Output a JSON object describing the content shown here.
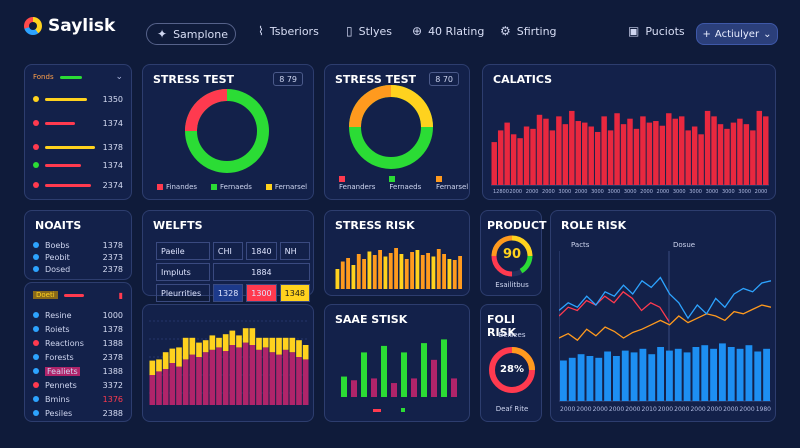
{
  "app": {
    "name": "Saylisk"
  },
  "nav": {
    "sample": "Samplone",
    "items": [
      "Tsberiors",
      "Stlyes",
      "40 Rlating",
      "Sfirting"
    ],
    "products": "Puciots",
    "action": "Actiulyer"
  },
  "colors": {
    "bg": "#0f1b3a",
    "card": "#13214a",
    "red": "#ff3a4f",
    "green": "#2bdc35",
    "yellow": "#ffd21e",
    "orange": "#ff9a1e",
    "blue": "#1d8ff2",
    "magenta": "#b0246a"
  },
  "list_card": {
    "title": "Fonds",
    "rows": [
      {
        "value": "1350"
      },
      {
        "value": "1374"
      },
      {
        "value": "1378"
      },
      {
        "value": "1374"
      },
      {
        "value": "2374"
      }
    ]
  },
  "stress1": {
    "title": "STRESS TEST",
    "badge": "8 79",
    "legend": [
      "Finandes",
      "Fernaeds",
      "Fernarsel"
    ],
    "donut": [
      {
        "color": "#2bdc35",
        "value": 75
      },
      {
        "color": "#ff3a4f",
        "value": 25
      }
    ]
  },
  "stress2": {
    "title": "STRESS TEST",
    "badge": "8 70",
    "legend": [
      "Fenanders",
      "Fernaeds",
      "Fernarsel"
    ],
    "donut": [
      {
        "color": "#ffd21e",
        "value": 30
      },
      {
        "color": "#2bdc35",
        "value": 45
      },
      {
        "color": "#ff9a1e",
        "value": 25
      }
    ]
  },
  "analytics": {
    "title": "CALATICS",
    "labels": [
      "12800",
      "2000",
      "2000",
      "2000",
      "3000",
      "2000",
      "3000",
      "3000",
      "3000",
      "2000",
      "2000",
      "3000",
      "3000",
      "3000",
      "3000",
      "3000",
      "2000"
    ],
    "values": [
      55,
      70,
      80,
      65,
      60,
      75,
      72,
      90,
      85,
      70,
      88,
      78,
      95,
      82,
      80,
      75,
      68,
      88,
      70,
      92,
      78,
      85,
      72,
      88,
      80,
      82,
      76,
      92,
      85,
      88,
      70,
      75,
      65,
      95,
      88,
      78,
      72,
      80,
      85,
      78,
      70,
      95,
      88
    ]
  },
  "noaits": {
    "title": "NOAITS",
    "rows": [
      {
        "label": "Boebs",
        "value": "1378"
      },
      {
        "label": "Peobit",
        "value": "2373"
      },
      {
        "label": "Dosed",
        "value": "2378"
      }
    ]
  },
  "weights": {
    "title": "WELFTS",
    "rows": [
      {
        "label": "Paeile",
        "cells": [
          "CHI",
          "1840",
          "NH"
        ]
      },
      {
        "label": "Impluts",
        "cells": [
          "1884"
        ]
      },
      {
        "label": "Pleurrities",
        "cells": [
          "1328",
          "1300",
          "1348"
        ]
      }
    ]
  },
  "stress_risk": {
    "title": "STRESS RISK",
    "values": [
      40,
      55,
      62,
      48,
      70,
      60,
      75,
      68,
      78,
      65,
      72,
      82,
      70,
      60,
      74,
      78,
      68,
      72,
      65,
      80,
      70,
      60,
      58,
      66
    ]
  },
  "product": {
    "title": "PRODUCT",
    "value": "90",
    "caption": "Esailitbus"
  },
  "role_risk": {
    "title": "ROLE RISK",
    "labels": [
      "Pacts",
      "Dosue"
    ],
    "xlabels": [
      "2000",
      "2000",
      "2000",
      "2000",
      "2000",
      "2010",
      "2000",
      "2000",
      "2000",
      "2000",
      "2000",
      "2000",
      "1980"
    ],
    "bars": [
      45,
      48,
      52,
      50,
      48,
      55,
      50,
      56,
      54,
      58,
      52,
      60,
      56,
      58,
      54,
      60,
      62,
      58,
      64,
      60,
      58,
      62,
      55,
      58
    ],
    "line_blue": [
      55,
      62,
      58,
      68,
      60,
      72,
      68,
      78,
      70,
      82,
      76,
      85,
      70,
      62,
      48,
      60,
      52,
      66,
      58,
      70,
      75,
      72,
      80,
      82
    ],
    "line_red": [
      50,
      58,
      55,
      64,
      60,
      68,
      62,
      72,
      66,
      55,
      62,
      58,
      45
    ],
    "line_orange": [
      30,
      34,
      28,
      38,
      32,
      40,
      36,
      30,
      35,
      38,
      42,
      46,
      42,
      50,
      44,
      48,
      52,
      50,
      46,
      54,
      52,
      56,
      60,
      58
    ]
  },
  "left_list2": {
    "title": "Doeti",
    "rows": [
      {
        "label": "Resine",
        "value": "1000"
      },
      {
        "label": "Roiets",
        "value": "1378"
      },
      {
        "label": "Reactions",
        "value": "1388"
      },
      {
        "label": "Forests",
        "value": "2378"
      },
      {
        "label": "Fealiets",
        "value": "1388"
      },
      {
        "label": "Pennets",
        "value": "3372"
      },
      {
        "label": "Bmins",
        "value": "1376"
      },
      {
        "label": "Pesiles",
        "value": "2388"
      }
    ]
  },
  "stacked": {
    "values_a": [
      25,
      28,
      30,
      35,
      32,
      38,
      42,
      40,
      44,
      46,
      48,
      45,
      50,
      48,
      52,
      50,
      46,
      48,
      44,
      42,
      46,
      44,
      40,
      38
    ],
    "values_b": [
      12,
      10,
      14,
      12,
      16,
      18,
      14,
      12,
      10,
      12,
      8,
      14,
      12,
      10,
      12,
      14,
      10,
      8,
      12,
      14,
      10,
      12,
      14,
      12
    ]
  },
  "sale_stick": {
    "title": "SAAE STISK",
    "values": [
      22,
      18,
      48,
      20,
      55,
      15,
      48,
      20,
      58,
      40,
      62,
      20
    ]
  },
  "fold_risk": {
    "title": "FOLI RISK",
    "top": "Beisees",
    "value": "28%",
    "caption": "Deaf Rite"
  }
}
